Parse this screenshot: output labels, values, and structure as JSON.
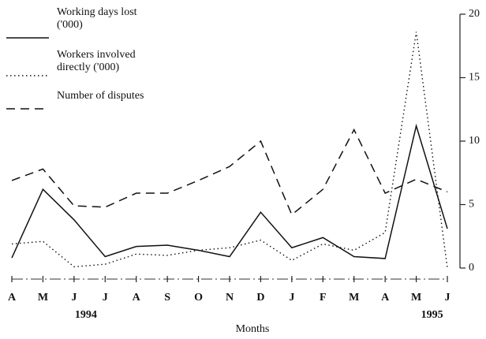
{
  "chart_data": {
    "type": "line",
    "x_label": "Months",
    "categories": [
      "A",
      "M",
      "J",
      "J",
      "A",
      "S",
      "O",
      "N",
      "D",
      "J",
      "F",
      "M",
      "A",
      "M",
      "J"
    ],
    "annotations": [
      "1994",
      "1995"
    ],
    "ylim": [
      0,
      20
    ],
    "yticks": [
      0,
      5,
      10,
      15,
      20
    ],
    "y_axis_side": "right",
    "series": [
      {
        "name": "Working days lost ('000)",
        "color": "#111111",
        "style": "solid",
        "values": [
          0.8,
          6.2,
          3.8,
          0.9,
          1.7,
          1.8,
          1.4,
          0.9,
          4.4,
          1.6,
          2.4,
          0.9,
          0.75,
          11.2,
          3.1
        ]
      },
      {
        "name": "Workers involved directly ('000)",
        "color": "#111111",
        "style": "dotted",
        "values": [
          1.9,
          2.1,
          0.1,
          0.3,
          1.1,
          1.0,
          1.4,
          1.6,
          2.2,
          0.6,
          1.9,
          1.4,
          2.8,
          18.6,
          0
        ]
      },
      {
        "name": "Number of disputes",
        "color": "#111111",
        "style": "dashed",
        "values": [
          6.9,
          7.8,
          4.9,
          4.8,
          5.9,
          5.9,
          6.9,
          8.0,
          10.0,
          4.2,
          6.2,
          10.9,
          5.9,
          7.0,
          6.0
        ]
      }
    ]
  }
}
